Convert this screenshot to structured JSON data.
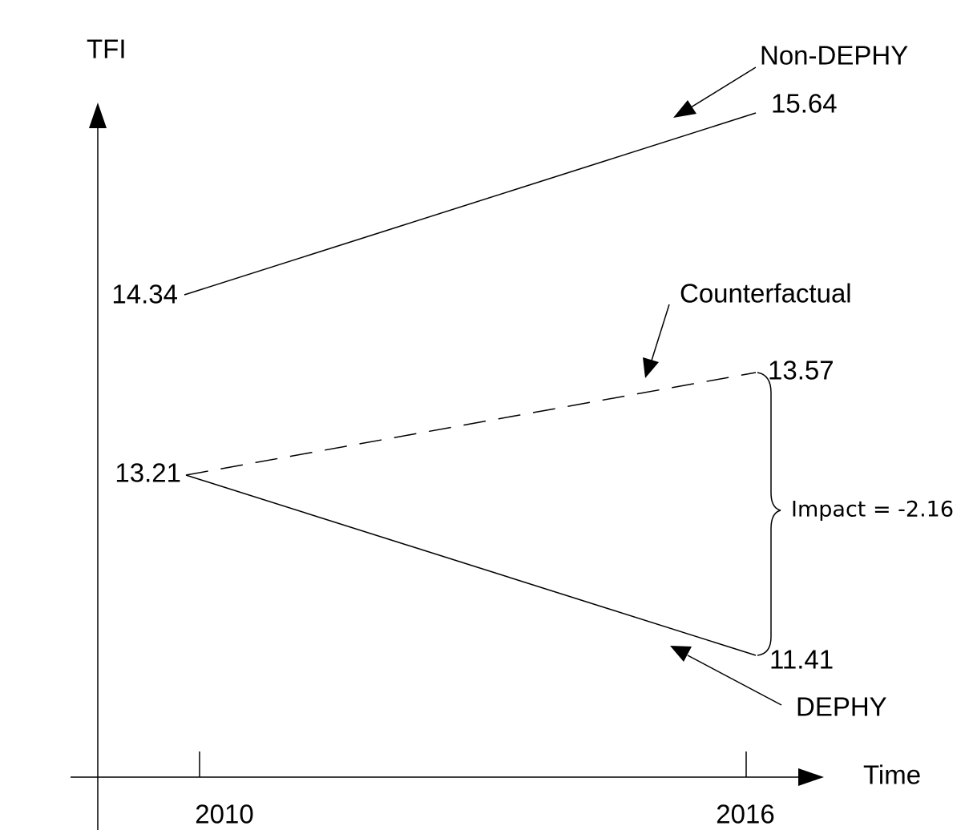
{
  "axes": {
    "y_label": "TFI",
    "x_label": "Time",
    "x_ticks": [
      "2010",
      "2016"
    ]
  },
  "lines": [
    {
      "name": "Non-DEPHY",
      "start_label": "14.34",
      "end_label": "15.64"
    },
    {
      "name": "Counterfactual",
      "end_label": "13.57"
    },
    {
      "name": "DEPHY",
      "end_label": "11.41"
    }
  ],
  "shared_start_label": "13.21",
  "impact": "Impact = -2.16"
}
